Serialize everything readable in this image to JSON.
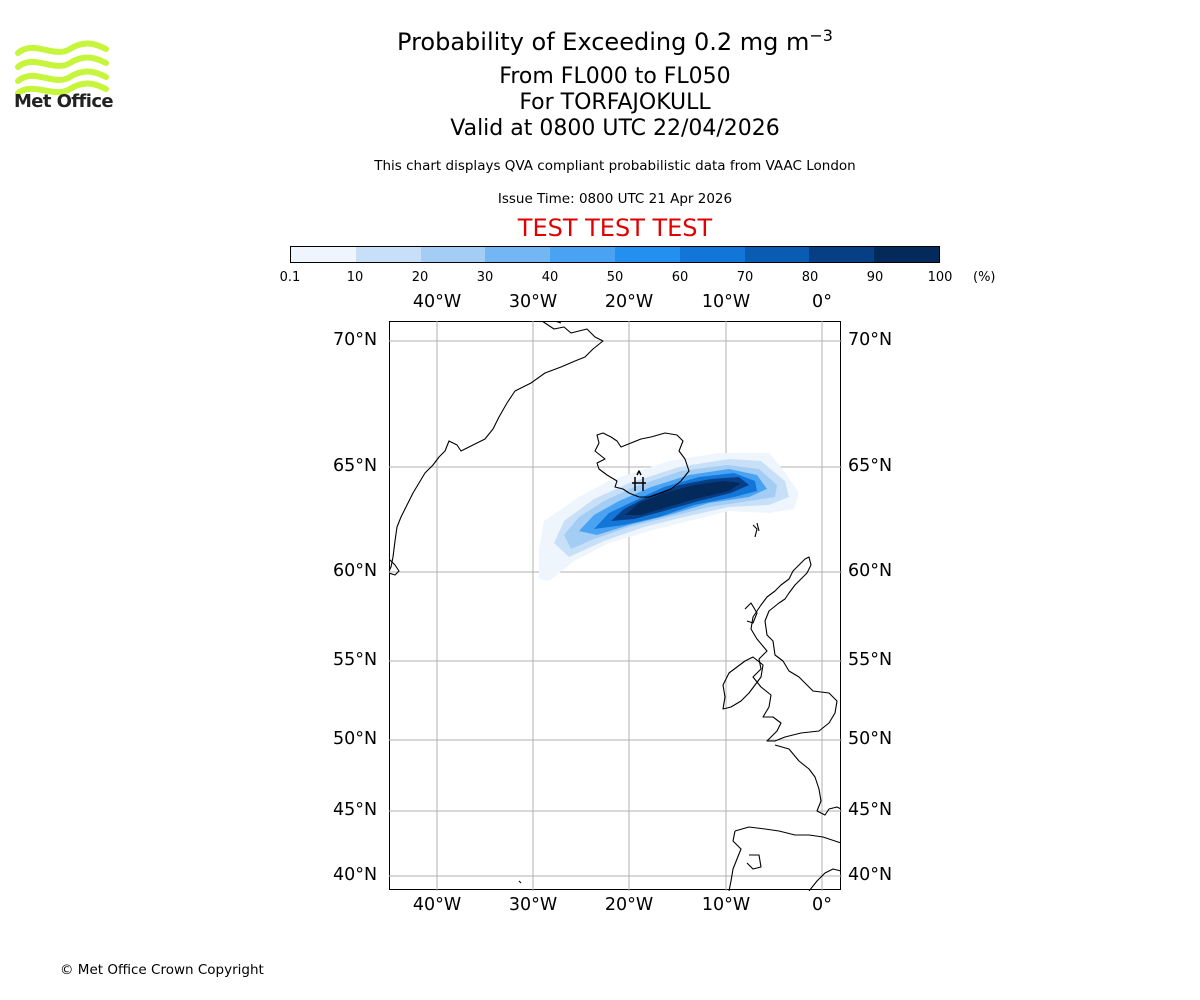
{
  "header": {
    "title": "Probability of Exceeding 0.2 mg m",
    "title_sup": "−3",
    "line2": "From FL000 to FL050",
    "line3": "For TORFAJOKULL",
    "line4": "Valid at 0800 UTC 22/04/2026",
    "disclaimer": "This chart displays QVA compliant probabilistic data from VAAC London",
    "issue_time": "Issue Time: 0800 UTC 21 Apr 2026",
    "test_banner": "TEST TEST TEST"
  },
  "logo": {
    "text": "Met Office",
    "color": "#c6f53b"
  },
  "colorbar": {
    "ticks": [
      "0.1",
      "10",
      "20",
      "30",
      "40",
      "50",
      "60",
      "70",
      "80",
      "90",
      "100"
    ],
    "unit": "(%)",
    "colors": [
      "#eef5fd",
      "#c8e0f7",
      "#a3cdf4",
      "#72b6f3",
      "#4aa3f2",
      "#2390ef",
      "#1276d8",
      "#0a5bb2",
      "#073f87",
      "#042a5c"
    ]
  },
  "map": {
    "longitude_labels": [
      "40°W",
      "30°W",
      "20°W",
      "10°W",
      "0°"
    ],
    "latitude_labels": [
      "70°N",
      "65°N",
      "60°N",
      "55°N",
      "50°N",
      "45°N",
      "40°N"
    ],
    "volcano": "TORFAJOKULL"
  },
  "footer": {
    "copyright": "© Met Office Crown Copyright"
  }
}
